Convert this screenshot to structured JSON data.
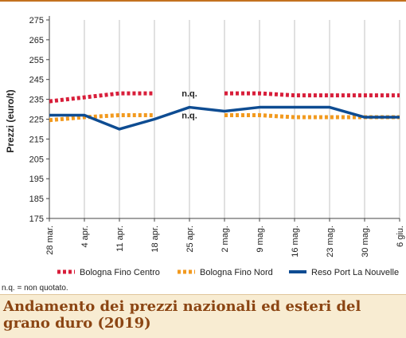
{
  "chart_data": {
    "type": "line",
    "title": "",
    "xlabel": "",
    "ylabel": "Prezzi (euro/t)",
    "ylim": [
      175,
      275
    ],
    "yticks": [
      175,
      185,
      195,
      205,
      215,
      225,
      235,
      245,
      255,
      265,
      275
    ],
    "x": [
      "28 mar.",
      "4 apr.",
      "11 apr.",
      "18 apr.",
      "25 apr.",
      "2 mag.",
      "9 mag.",
      "16 mag.",
      "23 mag.",
      "30 mag.",
      "6 giu."
    ],
    "grid": "vertical",
    "legend": "bottom",
    "series": [
      {
        "name": "Bologna Fino Centro",
        "color": "#d81e3a",
        "style": "dotted",
        "values": [
          234,
          236,
          238,
          238,
          null,
          238,
          238,
          237,
          237,
          237,
          237
        ]
      },
      {
        "name": "Bologna Fino Nord",
        "color": "#f29a1f",
        "style": "dotted",
        "values": [
          224.5,
          226,
          227,
          227,
          null,
          227,
          227,
          226,
          226,
          226,
          226
        ]
      },
      {
        "name": "Reso Port La Nouvelle",
        "color": "#0e4c92",
        "style": "solid",
        "values": [
          227,
          227,
          220,
          225,
          231,
          229,
          231,
          231,
          231,
          226,
          226
        ]
      }
    ],
    "annotations": [
      {
        "text": "n.q.",
        "x": "25 apr.",
        "y": 238
      },
      {
        "text": "n.q.",
        "x": "25 apr.",
        "y": 227
      }
    ]
  },
  "footnote": "n.q. = non quotato.",
  "caption": "Andamento dei prezzi nazionali ed esteri del grano duro (2019)",
  "colors": {
    "accent": "#c3711f",
    "caption_bg": "#f8ecd2",
    "caption_text": "#8b4513"
  }
}
